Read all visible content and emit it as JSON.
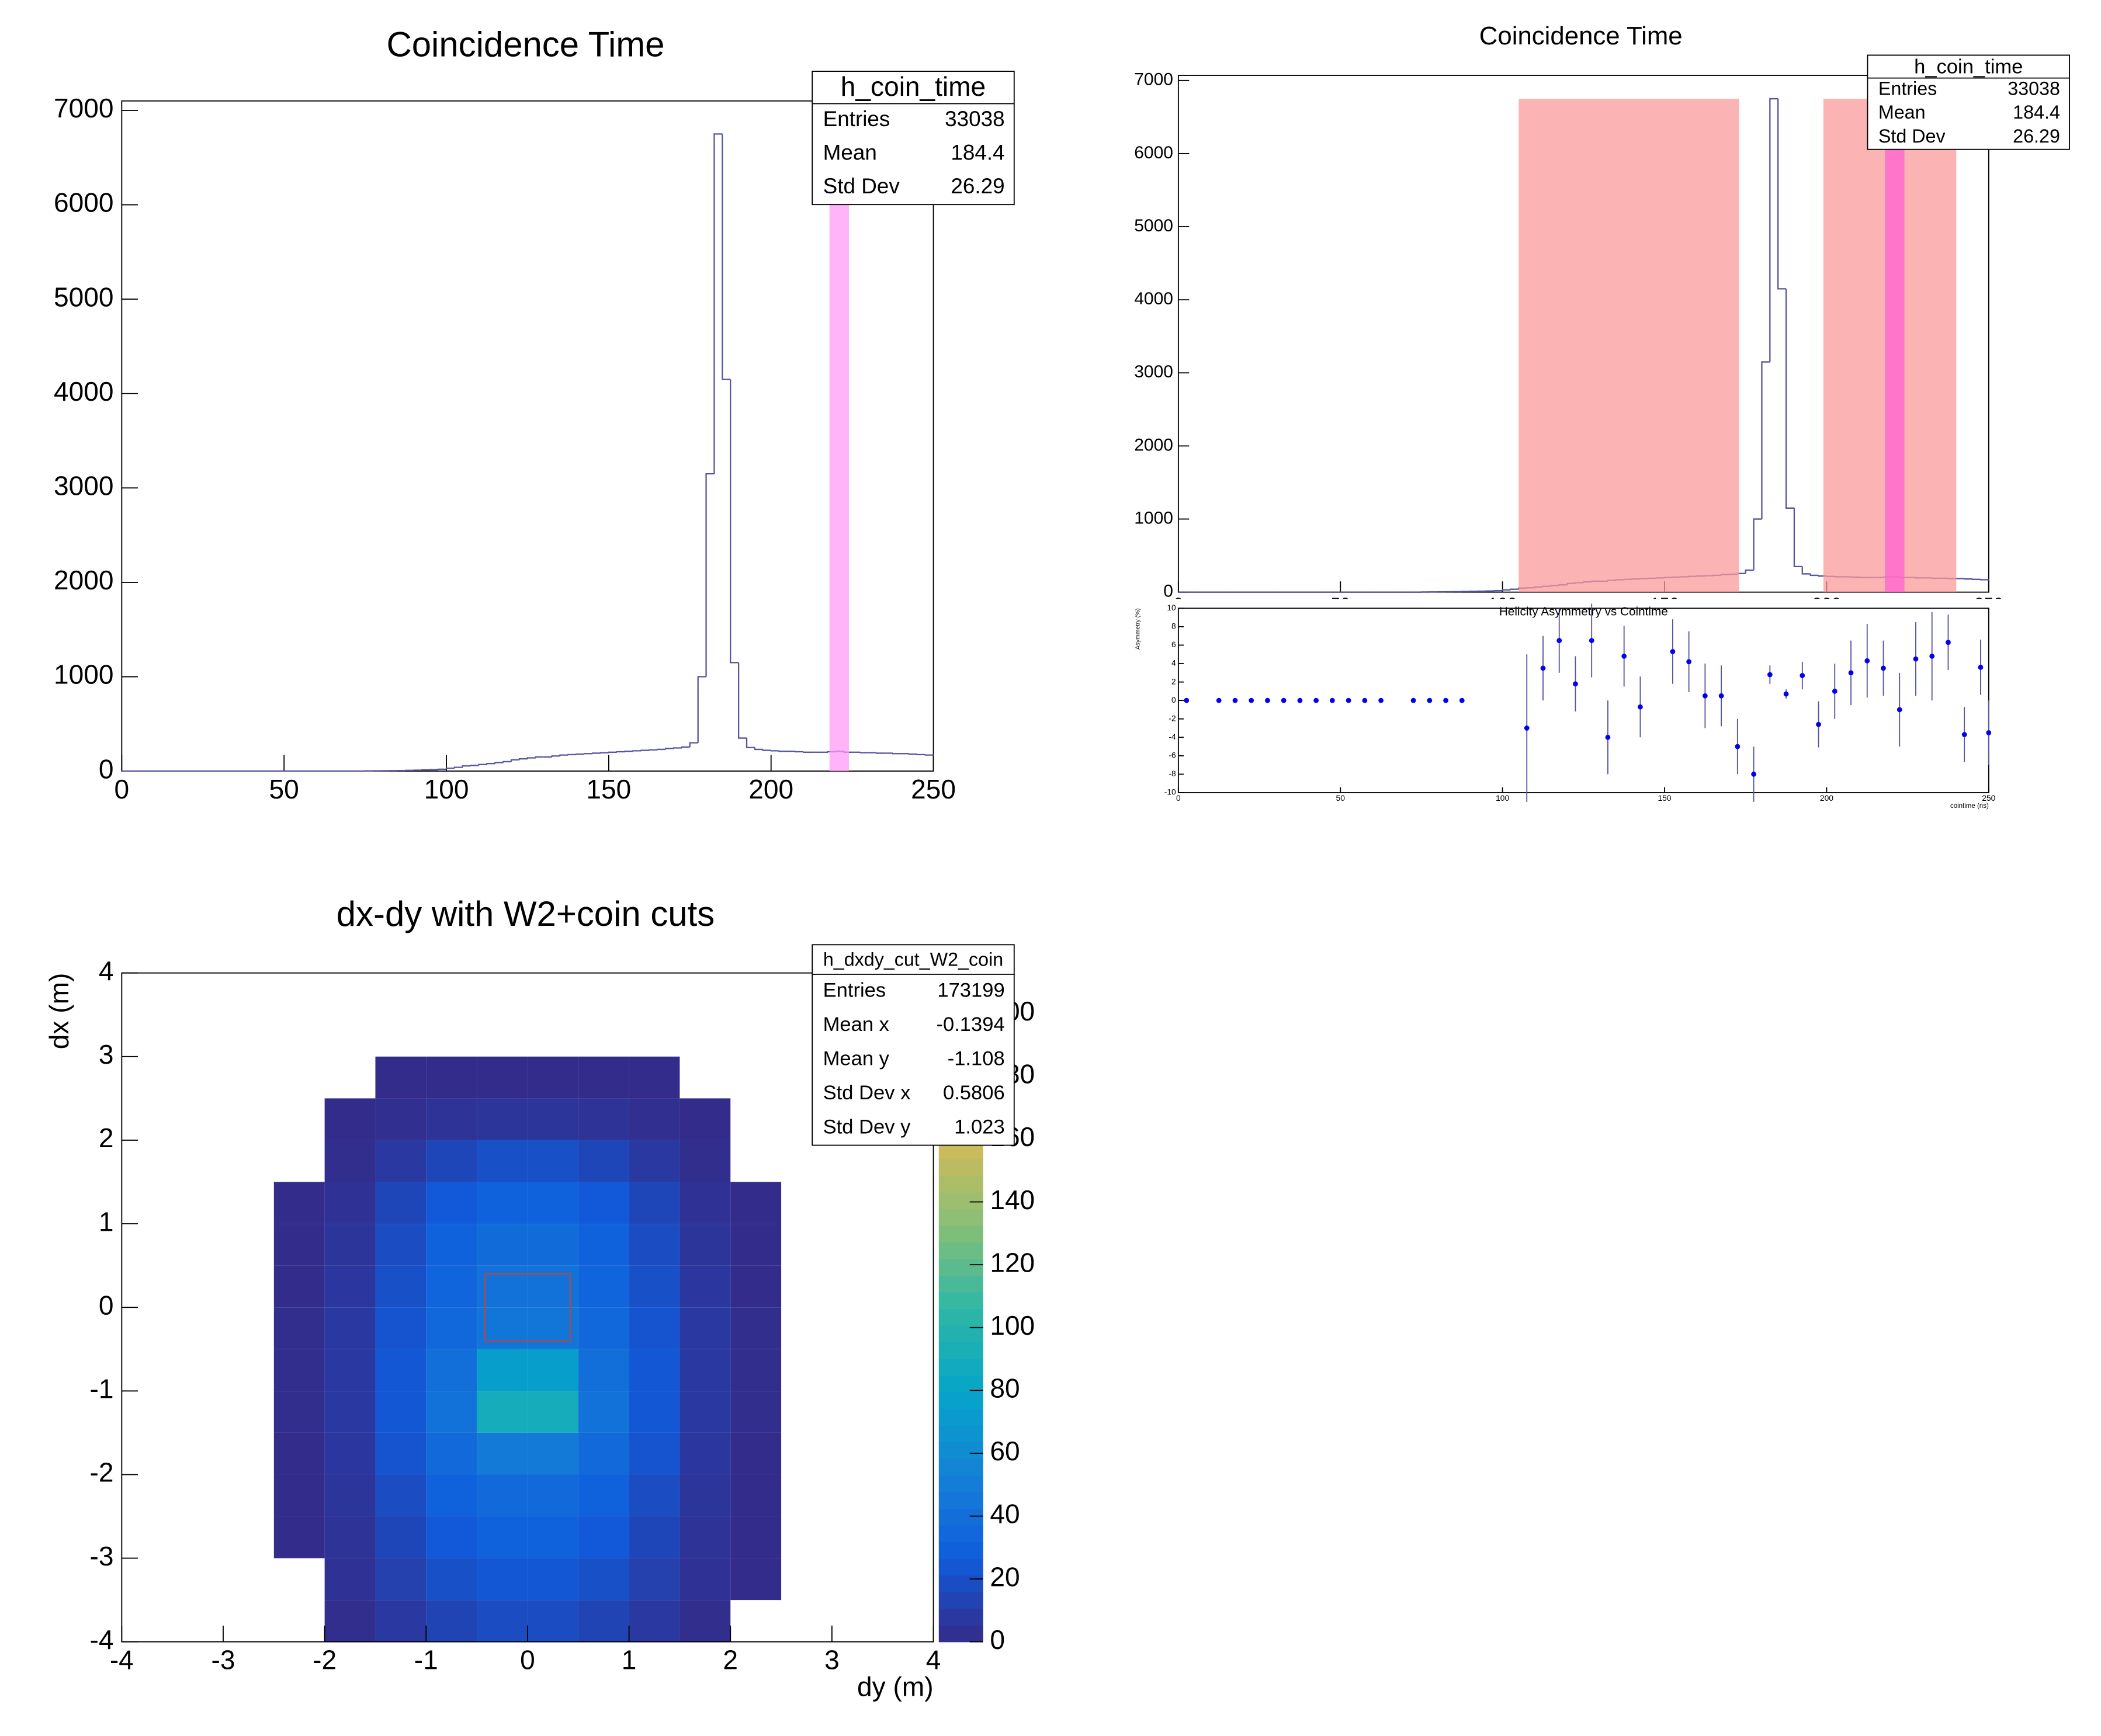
{
  "chart_data": [
    {
      "type": "histogram",
      "title": "Coincidence Time",
      "color": "#5555a0",
      "bins": [
        0,
        2.5,
        5,
        7.5,
        10,
        12.5,
        15,
        17.5,
        20,
        22.5,
        25,
        27.5,
        30,
        32.5,
        35,
        37.5,
        40,
        42.5,
        45,
        47.5,
        50,
        52.5,
        55,
        57.5,
        60,
        62.5,
        65,
        67.5,
        70,
        72.5,
        75,
        77.5,
        80,
        82.5,
        85,
        87.5,
        90,
        92.5,
        95,
        97.5,
        100,
        102.5,
        105,
        107.5,
        110,
        112.5,
        115,
        117.5,
        120,
        122.5,
        125,
        127.5,
        130,
        132.5,
        135,
        137.5,
        140,
        142.5,
        145,
        147.5,
        150,
        152.5,
        155,
        157.5,
        160,
        162.5,
        165,
        167.5,
        170,
        172.5,
        175,
        177.5,
        180,
        182.5,
        185,
        187.5,
        190,
        192.5,
        195,
        197.5,
        200,
        202.5,
        205,
        207.5,
        210,
        212.5,
        215,
        217.5,
        220,
        222.5,
        225,
        227.5,
        230,
        232.5,
        235,
        237.5,
        240,
        242.5,
        245,
        247.5,
        250
      ],
      "counts": [
        0,
        0,
        0,
        0,
        0,
        0,
        0,
        0,
        0,
        0,
        0,
        0,
        0,
        0,
        0,
        0,
        0,
        0,
        0,
        0,
        0,
        0,
        0,
        0,
        0,
        0,
        0,
        0,
        0,
        0,
        2,
        3,
        4,
        5,
        6,
        8,
        10,
        12,
        15,
        20,
        30,
        40,
        55,
        60,
        70,
        80,
        90,
        100,
        120,
        130,
        140,
        150,
        150,
        160,
        170,
        175,
        180,
        185,
        190,
        195,
        200,
        205,
        210,
        215,
        220,
        225,
        230,
        240,
        245,
        255,
        300,
        1000,
        3150,
        6750,
        4150,
        1150,
        350,
        250,
        230,
        220,
        215,
        210,
        210,
        205,
        200,
        200,
        200,
        205,
        210,
        200,
        200,
        195,
        195,
        190,
        190,
        185,
        185,
        180,
        175,
        170
      ],
      "xlim": [
        0,
        250
      ],
      "ylim": [
        0,
        7100
      ],
      "xticks": [
        0,
        50,
        100,
        150,
        200,
        250
      ],
      "yticks": [
        0,
        1000,
        2000,
        3000,
        4000,
        5000,
        6000,
        7000
      ],
      "bands": [
        {
          "range": [
            218,
            224
          ],
          "color": "#ff99f5"
        }
      ],
      "stats": {
        "title": "h_coin_time",
        "rows": [
          [
            "Entries",
            33038
          ],
          [
            "Mean",
            184.4
          ],
          [
            "Std Dev",
            26.29
          ]
        ]
      }
    },
    {
      "type": "histogram",
      "title": "Coincidence Time",
      "color": "#5555a0",
      "bins": [
        0,
        2.5,
        5,
        7.5,
        10,
        12.5,
        15,
        17.5,
        20,
        22.5,
        25,
        27.5,
        30,
        32.5,
        35,
        37.5,
        40,
        42.5,
        45,
        47.5,
        50,
        52.5,
        55,
        57.5,
        60,
        62.5,
        65,
        67.5,
        70,
        72.5,
        75,
        77.5,
        80,
        82.5,
        85,
        87.5,
        90,
        92.5,
        95,
        97.5,
        100,
        102.5,
        105,
        107.5,
        110,
        112.5,
        115,
        117.5,
        120,
        122.5,
        125,
        127.5,
        130,
        132.5,
        135,
        137.5,
        140,
        142.5,
        145,
        147.5,
        150,
        152.5,
        155,
        157.5,
        160,
        162.5,
        165,
        167.5,
        170,
        172.5,
        175,
        177.5,
        180,
        182.5,
        185,
        187.5,
        190,
        192.5,
        195,
        197.5,
        200,
        202.5,
        205,
        207.5,
        210,
        212.5,
        215,
        217.5,
        220,
        222.5,
        225,
        227.5,
        230,
        232.5,
        235,
        237.5,
        240,
        242.5,
        245,
        247.5,
        250
      ],
      "counts": [
        0,
        0,
        0,
        0,
        0,
        0,
        0,
        0,
        0,
        0,
        0,
        0,
        0,
        0,
        0,
        0,
        0,
        0,
        0,
        0,
        0,
        0,
        0,
        0,
        0,
        0,
        0,
        0,
        0,
        0,
        2,
        3,
        4,
        5,
        6,
        8,
        10,
        12,
        15,
        20,
        30,
        40,
        55,
        60,
        70,
        80,
        90,
        100,
        120,
        130,
        140,
        150,
        150,
        160,
        170,
        175,
        180,
        185,
        190,
        195,
        200,
        205,
        210,
        215,
        220,
        225,
        230,
        240,
        245,
        255,
        300,
        1000,
        3150,
        6750,
        4150,
        1150,
        350,
        250,
        230,
        220,
        215,
        210,
        210,
        205,
        200,
        200,
        200,
        205,
        210,
        200,
        200,
        195,
        195,
        190,
        190,
        185,
        185,
        180,
        175,
        170
      ],
      "xlim": [
        0,
        250
      ],
      "ylim": [
        0,
        7070
      ],
      "xticks": [
        0,
        50,
        100,
        150,
        200,
        250
      ],
      "yticks": [
        0,
        1000,
        2000,
        3000,
        4000,
        5000,
        6000,
        7000
      ],
      "bands": [
        {
          "range": [
            105,
            173
          ],
          "color": "#fb9a9a"
        },
        {
          "range": [
            199,
            240
          ],
          "color": "#fb9a9a"
        },
        {
          "range": [
            218,
            224
          ],
          "color": "#ff60d0"
        }
      ],
      "stats": {
        "title": "h_coin_time",
        "rows": [
          [
            "Entries",
            33038
          ],
          [
            "Mean",
            184.4
          ],
          [
            "Std Dev",
            26.29
          ]
        ]
      }
    },
    {
      "type": "errorbar",
      "title": "Helicity Asymmetry vs Cointime",
      "xlabel": "cointime (ns)",
      "ylabel": "Asymmetry (%)",
      "color": "#0000ee",
      "x": [
        2.5,
        12.5,
        17.5,
        22.5,
        27.5,
        32.5,
        37.5,
        42.5,
        47.5,
        52.5,
        57.5,
        62.5,
        72.5,
        77.5,
        82.5,
        87.5,
        107.5,
        112.5,
        117.5,
        122.5,
        127.5,
        132.5,
        137.5,
        142.5,
        152.5,
        157.5,
        162.5,
        167.5,
        172.5,
        177.5,
        182.5,
        187.5,
        192.5,
        197.5,
        202.5,
        207.5,
        212.5,
        217.5,
        222.5,
        227.5,
        232.5,
        237.5,
        242.5,
        247.5,
        250
      ],
      "values": [
        0,
        0,
        0,
        0,
        0,
        0,
        0,
        0,
        0,
        0,
        0,
        0,
        0,
        0,
        0,
        0,
        -3,
        3.5,
        6.5,
        1.8,
        6.5,
        -4,
        4.8,
        -0.7,
        5.3,
        4.2,
        0.5,
        0.5,
        -5,
        -8,
        2.8,
        0.7,
        2.7,
        -2.6,
        1,
        3,
        4.3,
        3.5,
        -1,
        4.5,
        4.8,
        6.3,
        -3.7,
        3.6,
        -3.5
      ],
      "errors": [
        0,
        0,
        0,
        0,
        0,
        0,
        0,
        0,
        0,
        0,
        0,
        0,
        0,
        0,
        0,
        0,
        8,
        3.5,
        3.5,
        3,
        4,
        4,
        3.3,
        3.3,
        3.5,
        3.3,
        3.5,
        3.3,
        3,
        3,
        1,
        0.5,
        1.5,
        2.5,
        3,
        3.5,
        4,
        3,
        4,
        4,
        4.8,
        3,
        3,
        3,
        3.5
      ],
      "xlim": [
        0,
        250
      ],
      "ylim": [
        -10,
        10
      ],
      "xticks": [
        0,
        50,
        100,
        150,
        200,
        250
      ],
      "yticks": [
        -10,
        -8,
        -6,
        -4,
        -2,
        0,
        2,
        4,
        6,
        8,
        10
      ]
    },
    {
      "type": "heatmap",
      "title": "dx-dy with W2+coin cuts",
      "xlabel": "dy (m)",
      "ylabel": "dx (m)",
      "x_edges": [
        -4,
        -3.5,
        -3,
        -2.5,
        -2,
        -1.5,
        -1,
        -0.5,
        0,
        0.5,
        1,
        1.5,
        2,
        2.5,
        3,
        3.5,
        4
      ],
      "y_edges": [
        -4,
        -3.5,
        -3,
        -2.5,
        -2,
        -1.5,
        -1,
        -0.5,
        0,
        0.5,
        1,
        1.5,
        2,
        2.5,
        3,
        3.5,
        4
      ],
      "z": [
        [
          0,
          0,
          0,
          0,
          2,
          8,
          14,
          18,
          18,
          14,
          8,
          2,
          0,
          0,
          0,
          0
        ],
        [
          0,
          0,
          0,
          0,
          4,
          12,
          20,
          24,
          24,
          20,
          12,
          4,
          1,
          0,
          0,
          0
        ],
        [
          0,
          0,
          0,
          1,
          5,
          15,
          25,
          30,
          30,
          25,
          15,
          5,
          1,
          0,
          0,
          0
        ],
        [
          0,
          0,
          0,
          1,
          6,
          18,
          30,
          36,
          36,
          30,
          18,
          6,
          1,
          0,
          0,
          0
        ],
        [
          0,
          0,
          0,
          1,
          7,
          22,
          36,
          48,
          48,
          36,
          22,
          7,
          1,
          0,
          0,
          0
        ],
        [
          0,
          0,
          0,
          2,
          8,
          24,
          42,
          90,
          90,
          42,
          24,
          8,
          2,
          0,
          0,
          0
        ],
        [
          0,
          0,
          0,
          2,
          8,
          24,
          40,
          75,
          75,
          40,
          24,
          8,
          2,
          0,
          0,
          0
        ],
        [
          0,
          0,
          0,
          2,
          8,
          22,
          35,
          45,
          45,
          35,
          22,
          8,
          2,
          0,
          0,
          0
        ],
        [
          0,
          0,
          0,
          1,
          7,
          20,
          32,
          42,
          42,
          32,
          20,
          7,
          1,
          0,
          0,
          0
        ],
        [
          0,
          0,
          0,
          1,
          6,
          18,
          30,
          38,
          38,
          30,
          18,
          6,
          1,
          0,
          0,
          0
        ],
        [
          0,
          0,
          0,
          1,
          4,
          15,
          25,
          30,
          30,
          25,
          15,
          4,
          1,
          0,
          0,
          0
        ],
        [
          0,
          0,
          0,
          0,
          2,
          8,
          15,
          20,
          20,
          15,
          8,
          2,
          0,
          0,
          0,
          0
        ],
        [
          0,
          0,
          0,
          0,
          1,
          3,
          5,
          6,
          6,
          5,
          3,
          1,
          0,
          0,
          0,
          0
        ],
        [
          0,
          0,
          0,
          0,
          0,
          1,
          1,
          1,
          1,
          1,
          1,
          0,
          0,
          0,
          0,
          0
        ],
        [
          0,
          0,
          0,
          0,
          0,
          0,
          0,
          0,
          0,
          0,
          0,
          0,
          0,
          0,
          0,
          0
        ],
        [
          0,
          0,
          0,
          0,
          0,
          0,
          0,
          0,
          0,
          0,
          0,
          0,
          0,
          0,
          0,
          0
        ]
      ],
      "xlim": [
        -4,
        4
      ],
      "ylim": [
        -4,
        4
      ],
      "xticks": [
        -4,
        -3,
        -2,
        -1,
        0,
        1,
        2,
        3,
        4
      ],
      "yticks": [
        -4,
        -3,
        -2,
        -1,
        0,
        1,
        2,
        3,
        4
      ],
      "zlim": [
        0,
        212
      ],
      "zticks": [
        0,
        20,
        40,
        60,
        80,
        100,
        120,
        140,
        160,
        180,
        200
      ],
      "cut_box": {
        "dy": [
          -0.42,
          0.42
        ],
        "dx": [
          -0.4,
          0.4
        ],
        "color": "#b04848"
      },
      "stats": {
        "title": "h_dxdy_cut_W2_coin",
        "rows": [
          [
            "Entries",
            173199
          ],
          [
            "Mean x",
            -0.1394
          ],
          [
            "Mean y",
            -1.108
          ],
          [
            "Std Dev x",
            0.5806
          ],
          [
            "Std Dev y",
            1.023
          ]
        ]
      }
    }
  ]
}
